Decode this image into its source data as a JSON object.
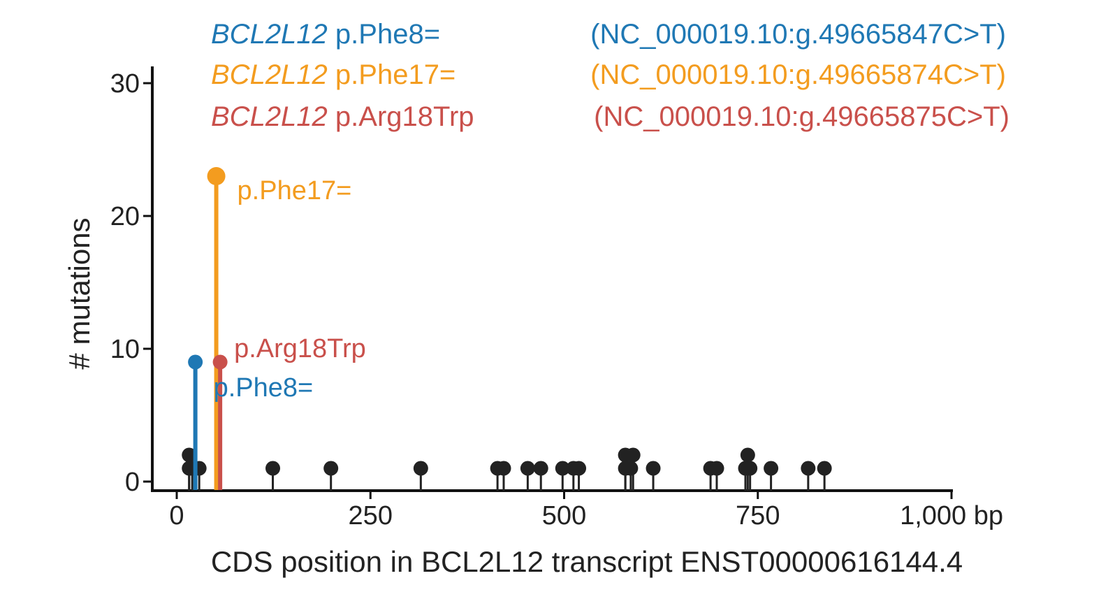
{
  "chart_data": {
    "type": "scatter",
    "subtype": "lollipop",
    "xlabel": "CDS position in BCL2L12 transcript ENST00000616144.4",
    "ylabel": "# mutations",
    "x_unit": "bp",
    "xlim": [
      0,
      1000
    ],
    "ylim": [
      0,
      30
    ],
    "x_ticks": [
      {
        "value": 0,
        "label": "0"
      },
      {
        "value": 250,
        "label": "250"
      },
      {
        "value": 500,
        "label": "500"
      },
      {
        "value": 750,
        "label": "750"
      },
      {
        "value": 1000,
        "label": "1,000 bp"
      }
    ],
    "y_ticks": [
      {
        "value": 0,
        "label": "0"
      },
      {
        "value": 10,
        "label": "10"
      },
      {
        "value": 20,
        "label": "20"
      },
      {
        "value": 30,
        "label": "30"
      }
    ],
    "grid": false,
    "legend": {
      "placement": "top",
      "entries": [
        {
          "gene": "BCL2L12",
          "variant": "p.Phe8=",
          "genomic": "(NC_000019.10:g.49665847C>T)",
          "color": "#1f78b4"
        },
        {
          "gene": "BCL2L12",
          "variant": "p.Phe17=",
          "genomic": "(NC_000019.10:g.49665874C>T)",
          "color": "#f39c1f"
        },
        {
          "gene": "BCL2L12",
          "variant": "p.Arg18Trp",
          "genomic": "(NC_000019.10:g.49665875C>T)",
          "color": "#c9504b"
        }
      ]
    },
    "highlighted": [
      {
        "x": 24,
        "y": 9,
        "label": "p.Phe8=",
        "color": "#1f78b4"
      },
      {
        "x": 51,
        "y": 23,
        "label": "p.Phe17=",
        "color": "#f39c1f"
      },
      {
        "x": 56,
        "y": 9,
        "label": "p.Arg18Trp",
        "color": "#c9504b"
      }
    ],
    "other_mutations": {
      "color": "#222222",
      "points": [
        {
          "x": 16,
          "y": 2
        },
        {
          "x": 16,
          "y": 1
        },
        {
          "x": 20,
          "y": 1
        },
        {
          "x": 29,
          "y": 1
        },
        {
          "x": 124,
          "y": 1
        },
        {
          "x": 199,
          "y": 1
        },
        {
          "x": 315,
          "y": 1
        },
        {
          "x": 414,
          "y": 1
        },
        {
          "x": 422,
          "y": 1
        },
        {
          "x": 453,
          "y": 1
        },
        {
          "x": 470,
          "y": 1
        },
        {
          "x": 498,
          "y": 1
        },
        {
          "x": 512,
          "y": 1
        },
        {
          "x": 519,
          "y": 1
        },
        {
          "x": 579,
          "y": 2
        },
        {
          "x": 579,
          "y": 1
        },
        {
          "x": 589,
          "y": 2
        },
        {
          "x": 586,
          "y": 1
        },
        {
          "x": 615,
          "y": 1
        },
        {
          "x": 689,
          "y": 1
        },
        {
          "x": 697,
          "y": 1
        },
        {
          "x": 737,
          "y": 2
        },
        {
          "x": 734,
          "y": 1
        },
        {
          "x": 740,
          "y": 1
        },
        {
          "x": 767,
          "y": 1
        },
        {
          "x": 815,
          "y": 1
        },
        {
          "x": 836,
          "y": 1
        }
      ]
    }
  }
}
